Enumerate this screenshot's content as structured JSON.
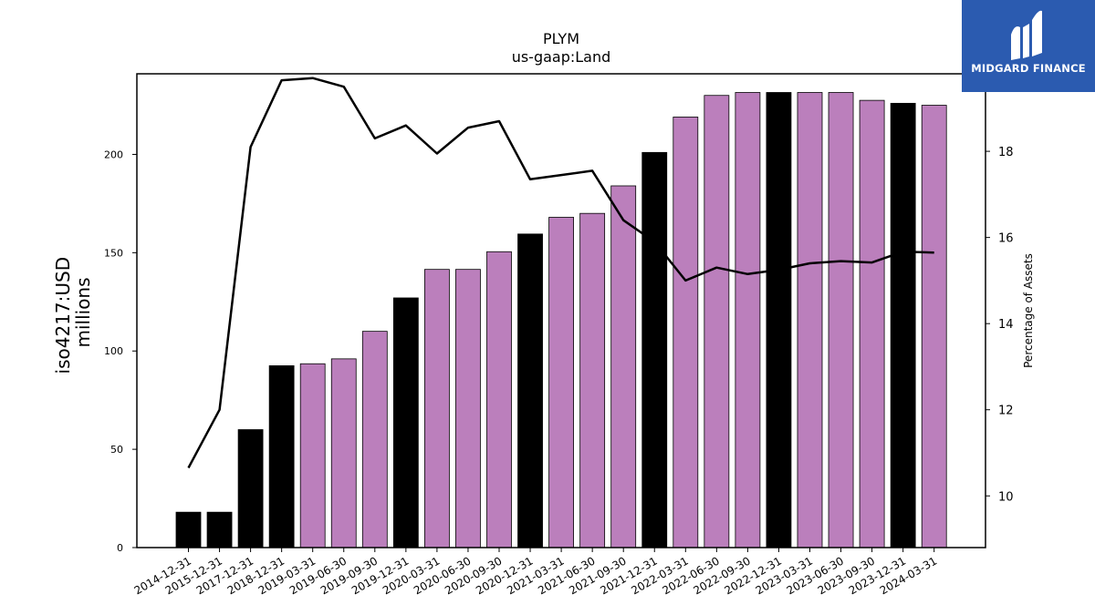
{
  "brand": {
    "name": "MIDGARD FINANCE",
    "color": "#2b5bb0"
  },
  "chart_data": {
    "type": "bar",
    "title": "PLYM",
    "subtitle": "us-gaap:Land",
    "ylabel": "iso4217:USD\nmillions",
    "ylabel_lines": [
      "iso4217:USD",
      "millions"
    ],
    "y2label": "Percentage of Assets",
    "ylim": [
      0,
      241
    ],
    "y2lim": [
      8.8,
      19.8
    ],
    "yticks": [
      0,
      50,
      100,
      150,
      200
    ],
    "y2ticks": [
      10,
      12,
      14,
      16,
      18
    ],
    "categories": [
      "2014-12-31",
      "2015-12-31",
      "2017-12-31",
      "2018-12-31",
      "2019-03-31",
      "2019-06-30",
      "2019-09-30",
      "2019-12-31",
      "2020-03-31",
      "2020-06-30",
      "2020-09-30",
      "2020-12-31",
      "2021-03-31",
      "2021-06-30",
      "2021-09-30",
      "2021-12-31",
      "2022-03-31",
      "2022-06-30",
      "2022-09-30",
      "2022-12-31",
      "2023-03-31",
      "2023-06-30",
      "2023-09-30",
      "2023-12-31",
      "2024-03-31"
    ],
    "series": [
      {
        "type": "bar",
        "values": [
          18,
          18,
          60,
          92.5,
          93.5,
          96,
          110,
          127,
          141.5,
          141.5,
          150.5,
          159.5,
          168,
          170,
          184,
          201,
          219,
          230,
          231.5,
          231.5,
          231.5,
          231.5,
          227.5,
          226,
          225
        ],
        "bar_colors": [
          "#000000",
          "#000000",
          "#000000",
          "#000000",
          "#bb7fbc",
          "#bb7fbc",
          "#bb7fbc",
          "#000000",
          "#bb7fbc",
          "#bb7fbc",
          "#bb7fbc",
          "#000000",
          "#bb7fbc",
          "#bb7fbc",
          "#bb7fbc",
          "#000000",
          "#bb7fbc",
          "#bb7fbc",
          "#bb7fbc",
          "#000000",
          "#bb7fbc",
          "#bb7fbc",
          "#bb7fbc",
          "#000000",
          "#bb7fbc"
        ]
      },
      {
        "type": "line",
        "axis": "right",
        "values": [
          10.65,
          12.0,
          18.1,
          19.65,
          19.7,
          19.5,
          18.3,
          18.6,
          17.95,
          18.55,
          18.7,
          17.35,
          17.45,
          17.55,
          16.4,
          15.9,
          15.0,
          15.3,
          15.15,
          15.25,
          15.4,
          15.45,
          15.42,
          15.67,
          15.65
        ],
        "color": "#000000"
      }
    ],
    "colors": {
      "bar_primary": "#000000",
      "bar_secondary": "#bb7fbc",
      "line": "#000000"
    },
    "grid": false,
    "legend": "none"
  }
}
